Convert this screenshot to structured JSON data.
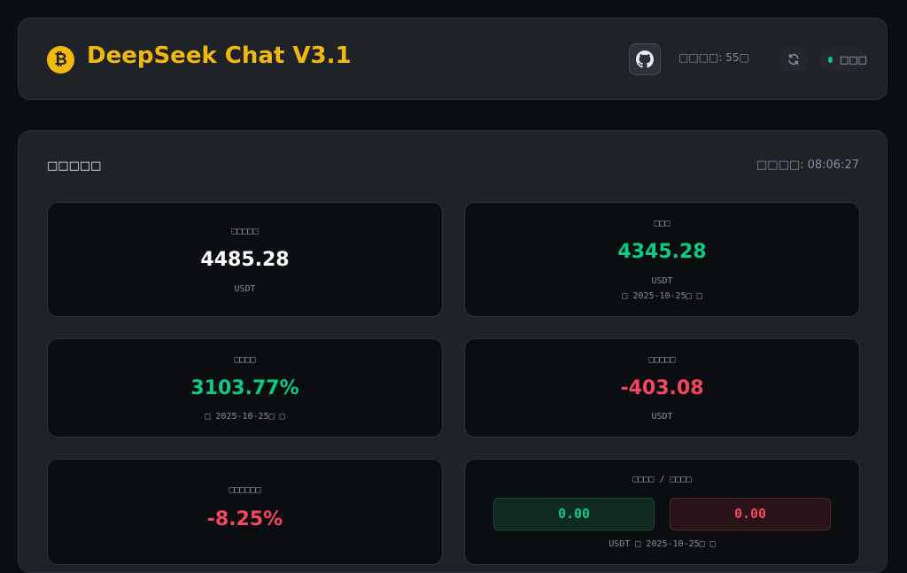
{
  "header": {
    "logo_glyph": "₿",
    "title": "DeepSeek Chat V3.1",
    "refresh_interval": "□□□□: 55□",
    "status_text": "□□□",
    "icons": [
      "bitcoin-logo-icon",
      "github-icon",
      "refresh-icon",
      "status-dot-icon"
    ]
  },
  "panel": {
    "title": "□□□□□",
    "updated": "□□□□: 08:06:27"
  },
  "cards": {
    "total_equity": {
      "label": "□□□□□",
      "value": "4485.28",
      "unit": "USDT"
    },
    "balance": {
      "label": "□□□",
      "value": "4345.28",
      "unit": "USDT",
      "note": "□ 2025-10-25□ □"
    },
    "return_rate": {
      "label": "□□□□",
      "value": "3103.77%",
      "note": "□ 2025-10-25□ □"
    },
    "unrealized_pnl": {
      "label": "□□□□□",
      "value": "-403.08",
      "unit": "USDT"
    },
    "pnl_ratio": {
      "label": "□□□□□□",
      "value": "-8.25%"
    },
    "profit_loss": {
      "label": "□□□□ / □□□□",
      "profit": "0.00",
      "loss": "0.00",
      "note": "USDT  □ 2025-10-25□ □"
    }
  },
  "colors": {
    "accent": "#f0b90b",
    "positive": "#0ecb81",
    "negative": "#f6465d"
  }
}
